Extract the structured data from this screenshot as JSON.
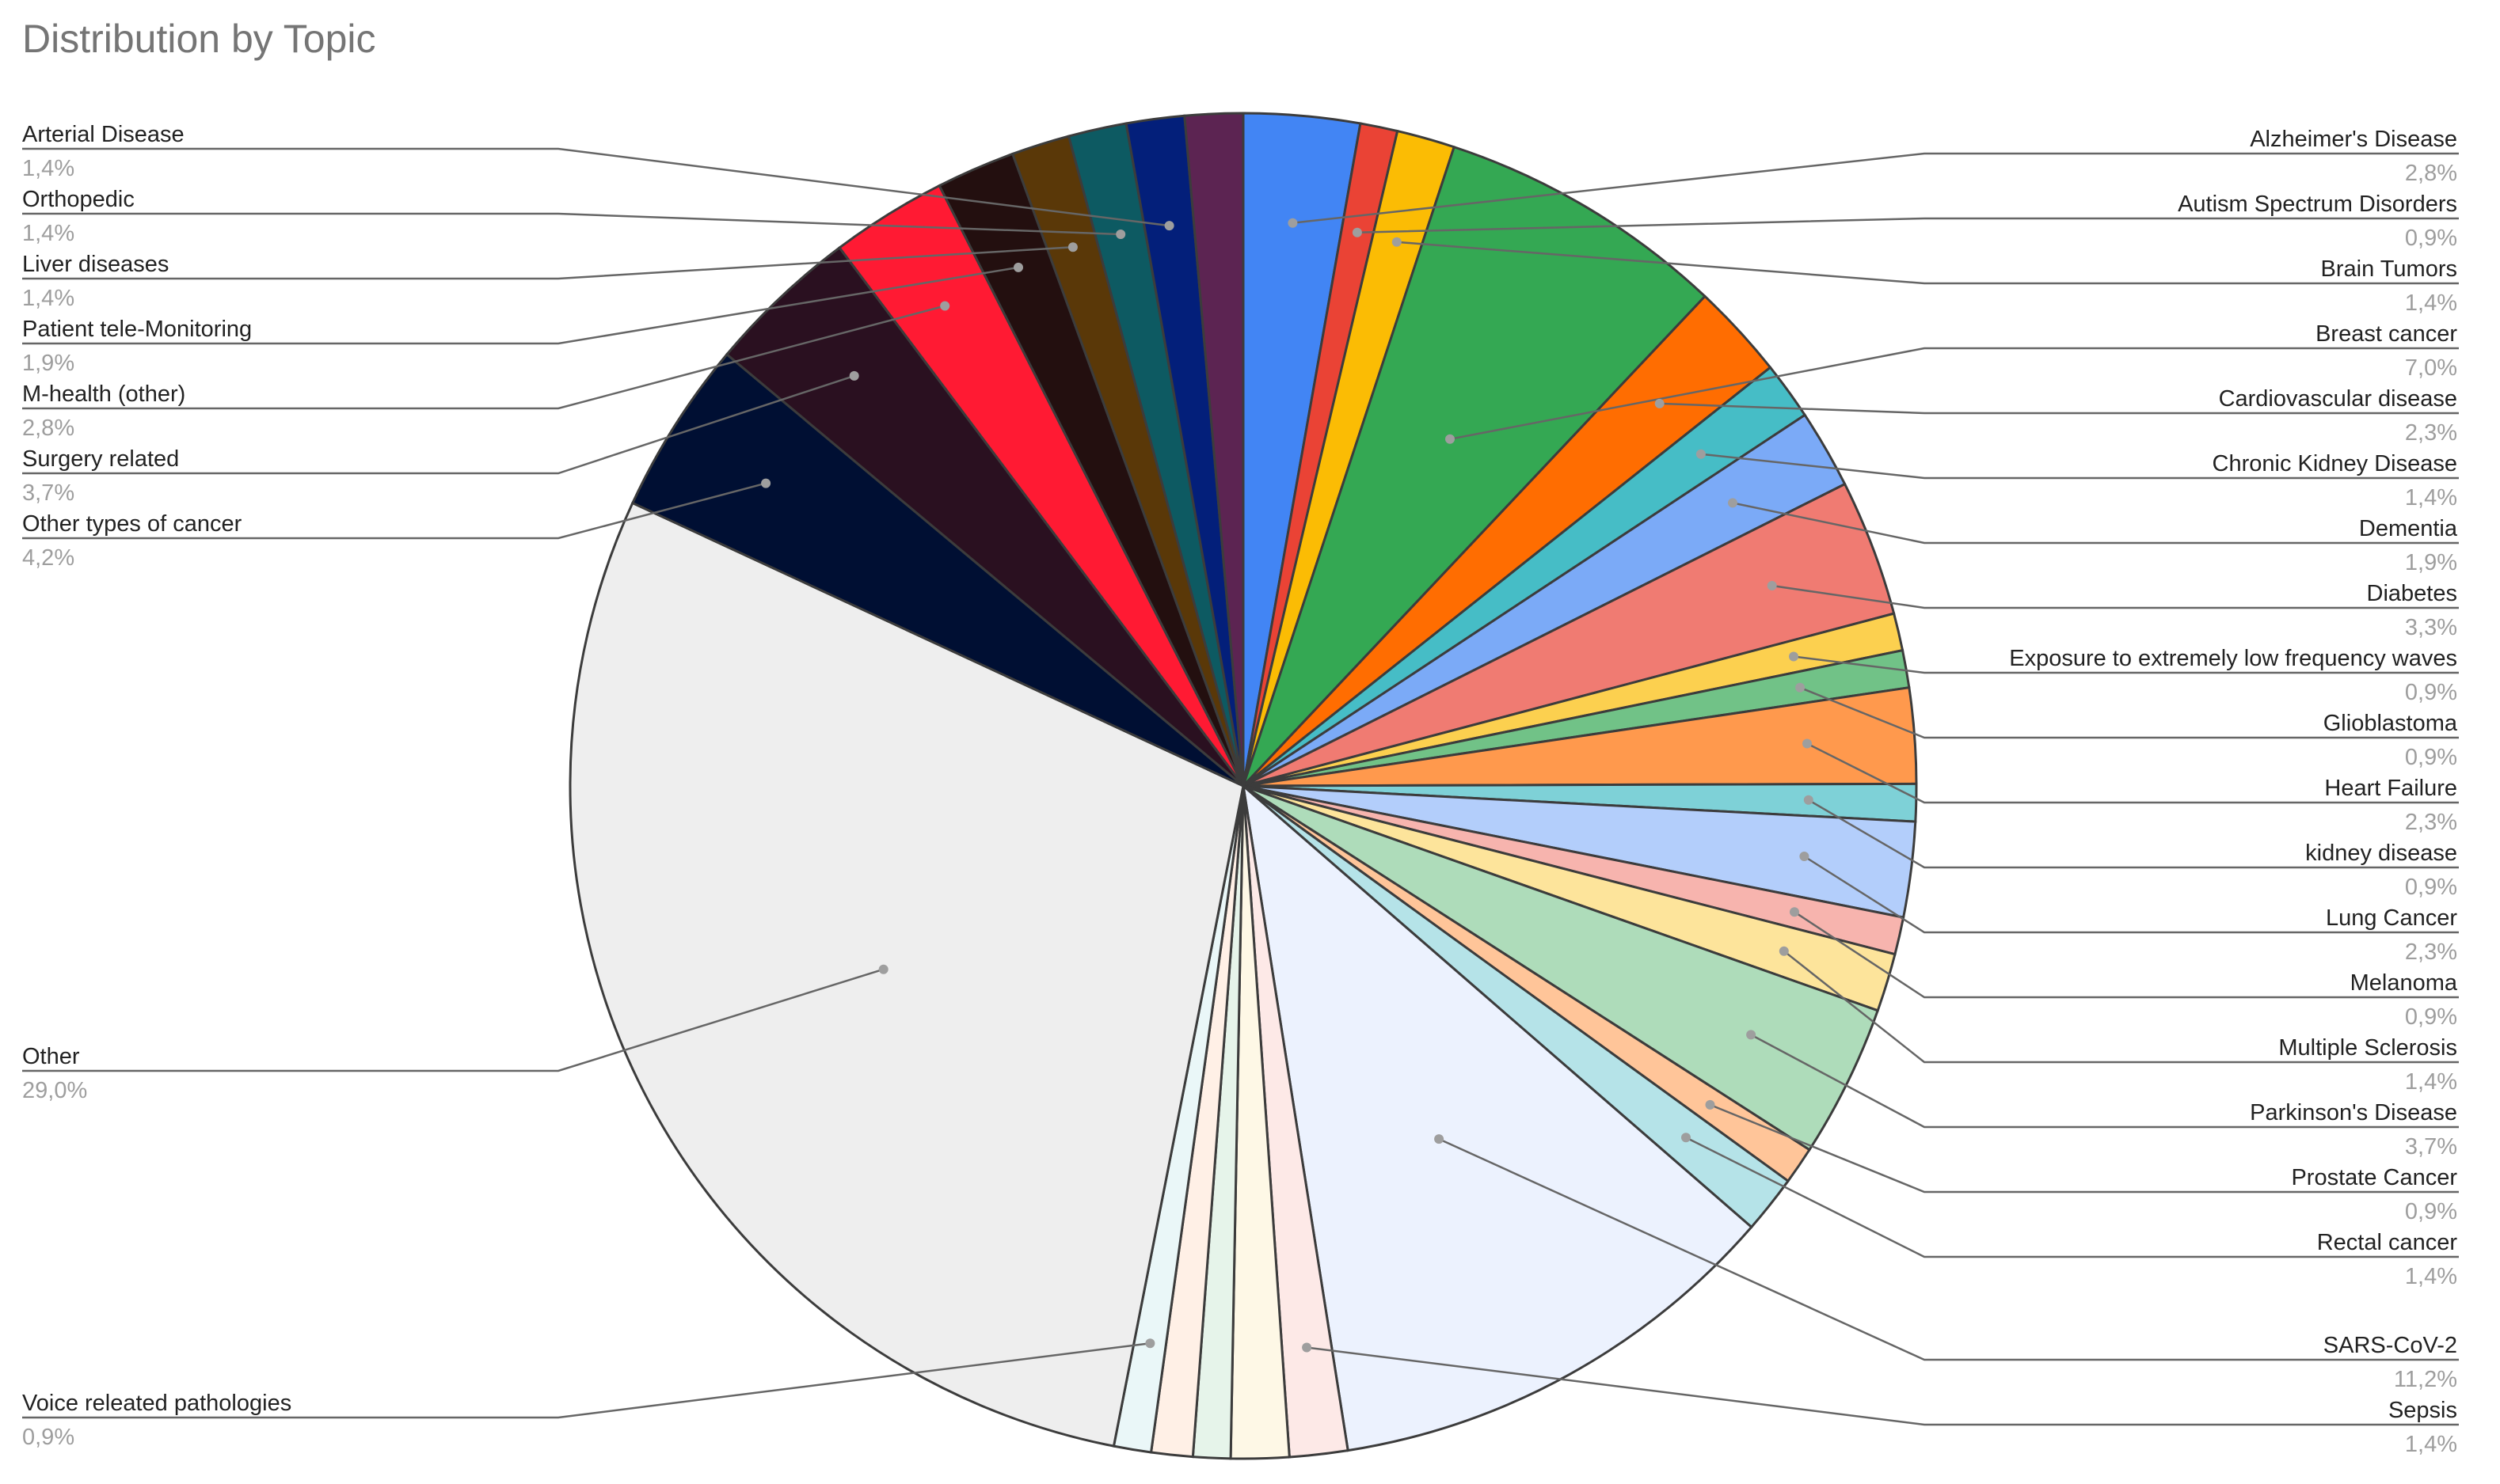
{
  "chart_data": {
    "type": "pie",
    "title": "Distribution by Topic",
    "legend": "none",
    "slices": [
      {
        "label": "Alzheimer's Disease",
        "value_label": "2,8%",
        "value": 2.8,
        "color": "#4285f4"
      },
      {
        "label": "Autism Spectrum Disorders",
        "value_label": "0,9%",
        "value": 0.9,
        "color": "#ea4335"
      },
      {
        "label": "Brain Tumors",
        "value_label": "1,4%",
        "value": 1.4,
        "color": "#fbbc04"
      },
      {
        "label": "Breast cancer",
        "value_label": "7,0%",
        "value": 7.0,
        "color": "#34a853"
      },
      {
        "label": "Cardiovascular disease",
        "value_label": "2,3%",
        "value": 2.3,
        "color": "#ff6d01"
      },
      {
        "label": "Chronic Kidney Disease",
        "value_label": "1,4%",
        "value": 1.4,
        "color": "#46bdc6"
      },
      {
        "label": "Dementia",
        "value_label": "1,9%",
        "value": 1.9,
        "color": "#7baaf7"
      },
      {
        "label": "Diabetes",
        "value_label": "3,3%",
        "value": 3.3,
        "color": "#f07b72"
      },
      {
        "label": "Exposure to extremely low frequency waves",
        "value_label": "0,9%",
        "value": 0.9,
        "color": "#fcd04f"
      },
      {
        "label": "Glioblastoma",
        "value_label": "0,9%",
        "value": 0.9,
        "color": "#71c287"
      },
      {
        "label": "Heart Failure",
        "value_label": "2,3%",
        "value": 2.3,
        "color": "#ff994d"
      },
      {
        "label": "kidney disease",
        "value_label": "0,9%",
        "value": 0.9,
        "color": "#7ed1d7"
      },
      {
        "label": "Lung Cancer",
        "value_label": "2,3%",
        "value": 2.3,
        "color": "#b3cefb"
      },
      {
        "label": "Melanoma",
        "value_label": "0,9%",
        "value": 0.9,
        "color": "#f7b4ae"
      },
      {
        "label": "Multiple Sclerosis",
        "value_label": "1,4%",
        "value": 1.4,
        "color": "#fde49b"
      },
      {
        "label": "Parkinson's Disease",
        "value_label": "3,7%",
        "value": 3.7,
        "color": "#aedcba"
      },
      {
        "label": "Prostate Cancer",
        "value_label": "0,9%",
        "value": 0.9,
        "color": "#ffc599"
      },
      {
        "label": "Rectal cancer",
        "value_label": "1,4%",
        "value": 1.4,
        "color": "#b5e3e8"
      },
      {
        "label": "SARS-CoV-2",
        "value_label": "11,2%",
        "value": 11.2,
        "color": "#ecf2fe"
      },
      {
        "label": "Sepsis",
        "value_label": "1,4%",
        "value": 1.4,
        "color": "#fde9e7"
      },
      {
        "label": "",
        "value_label": "",
        "value": 1.4,
        "color": "#fef8e6"
      },
      {
        "label": "",
        "value_label": "",
        "value": 0.9,
        "color": "#e6f4ea"
      },
      {
        "label": "",
        "value_label": "",
        "value": 1.0,
        "color": "#fff0e6"
      },
      {
        "label": "Voice releated pathologies",
        "value_label": "0,9%",
        "value": 0.9,
        "color": "#eaf7f8"
      },
      {
        "label": "Other",
        "value_label": "29,0%",
        "value": 29.0,
        "color": "#eeeeee"
      },
      {
        "label": "Other types of cancer",
        "value_label": "4,2%",
        "value": 4.2,
        "color": "#000f33"
      },
      {
        "label": "Surgery related",
        "value_label": "3,7%",
        "value": 3.7,
        "color": "#2a1020"
      },
      {
        "label": "M-health (other)",
        "value_label": "2,8%",
        "value": 2.8,
        "color": "#ff1a33"
      },
      {
        "label": "Patient tele-Monitoring",
        "value_label": "1,9%",
        "value": 1.9,
        "color": "#230f0f"
      },
      {
        "label": "Liver diseases",
        "value_label": "1,4%",
        "value": 1.4,
        "color": "#5a3808"
      },
      {
        "label": "Orthopedic",
        "value_label": "1,4%",
        "value": 1.4,
        "color": "#0d5a62"
      },
      {
        "label": "Arterial Disease",
        "value_label": "1,4%",
        "value": 1.4,
        "color": "#031f7a"
      },
      {
        "label": "",
        "value_label": "",
        "value": 1.4,
        "color": "#5c2452"
      }
    ]
  }
}
